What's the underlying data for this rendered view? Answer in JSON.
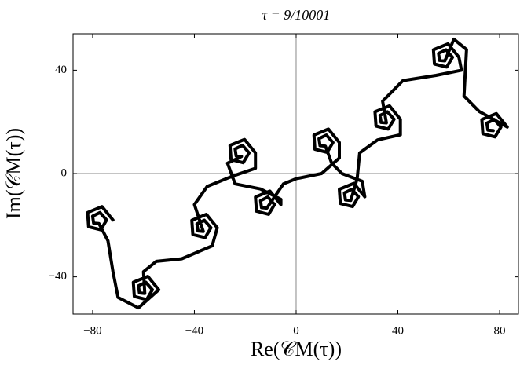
{
  "chart_data": {
    "type": "line",
    "title": "τ = 9/10001",
    "x_label": "Re(𝒞M(τ))",
    "y_label": "Im(𝒞M(τ))",
    "xlim": [
      -87.7,
      87.4
    ],
    "ylim": [
      -54.4,
      54.1
    ],
    "xticks": [
      {
        "value": -80,
        "label": "−80"
      },
      {
        "value": -40,
        "label": "−40"
      },
      0,
      40,
      80
    ],
    "yticks": [
      {
        "value": -40,
        "label": "−40"
      },
      0,
      40
    ],
    "zero_lines": true,
    "grid": false,
    "x": [
      -72,
      -76.3,
      -82,
      -81.6,
      -76.8,
      -74.5,
      -77.1,
      -80,
      -79.6,
      -77.5,
      -74,
      -72,
      -70,
      -62,
      -54,
      -58.3,
      -64,
      -63.6,
      -58.8,
      -56.5,
      -59.1,
      -62,
      -61.6,
      -59.5,
      -60,
      -55,
      -45,
      -33,
      -31,
      -35.3,
      -41,
      -40.6,
      -35.8,
      -33.5,
      -36.1,
      -39,
      -38.6,
      -36.5,
      -40,
      -35,
      -25,
      -16,
      -16,
      -20.3,
      -26,
      -25.6,
      -20.8,
      -18.5,
      -21.1,
      -24,
      -23.6,
      -21.5,
      -27,
      -24,
      -14,
      -6,
      -6,
      -10.3,
      -16,
      -15.6,
      -10.8,
      -8.5,
      -11.1,
      -14,
      -13.6,
      -11.5,
      -5,
      0,
      10,
      17,
      17,
      12.7,
      7,
      7.4,
      12.2,
      14.5,
      11.9,
      9,
      9.4,
      11.5,
      14,
      18,
      26,
      27,
      22.7,
      17,
      17.4,
      22.2,
      24.5,
      21.9,
      19,
      19.4,
      21.5,
      24,
      25,
      32,
      41,
      41,
      36.7,
      31,
      31.4,
      36.2,
      38.5,
      35.9,
      33,
      33.4,
      35.5,
      34,
      42,
      55,
      65,
      64,
      59.7,
      54,
      54.4,
      59.2,
      61.5,
      58.9,
      56,
      56.4,
      58.5,
      62,
      67,
      66,
      72,
      83,
      78.7,
      73,
      73.4,
      78.2,
      80.5,
      77.9,
      75,
      75.4,
      77.5
    ],
    "series": [
      {
        "color": "#000000",
        "values": [
          -18,
          -12.8,
          -15.1,
          -20.6,
          -21.8,
          -18,
          -15.1,
          -16.5,
          -19.2,
          -19.4,
          -26,
          -38,
          -48,
          -52,
          -45,
          -39.8,
          -42.1,
          -47.6,
          -48.8,
          -45,
          -42.1,
          -43.5,
          -46.2,
          -46.4,
          -38,
          -34,
          -33,
          -28,
          -21,
          -15.8,
          -18.1,
          -23.6,
          -24.8,
          -21,
          -18.1,
          -19.5,
          -22.2,
          -22.4,
          -12,
          -5,
          -1,
          2,
          8,
          13.2,
          10.9,
          5.4,
          4.2,
          8,
          10.9,
          9.5,
          6.8,
          6.6,
          4,
          -4,
          -6,
          -10,
          -12,
          -6.8,
          -9.1,
          -14.6,
          -15.8,
          -12,
          -9.1,
          -10.5,
          -13.2,
          -13.4,
          -4,
          -2,
          0,
          6,
          12,
          17.2,
          14.9,
          9.4,
          8.2,
          12,
          14.9,
          13.5,
          10.8,
          10.6,
          4,
          0,
          -3,
          -9,
          -3.8,
          -6.1,
          -11.6,
          -12.8,
          -9,
          -6.1,
          -7.5,
          -10.2,
          -10.4,
          -2,
          8,
          13,
          15,
          21,
          26.2,
          23.9,
          18.4,
          17.2,
          21,
          23.9,
          22.5,
          19.8,
          19.6,
          28,
          36,
          38,
          40,
          45,
          50.2,
          47.9,
          42.4,
          41.2,
          45,
          47.9,
          46.5,
          43.8,
          43.6,
          52,
          48,
          30,
          24,
          18,
          23.2,
          20.9,
          15.4,
          14.2,
          18,
          20.9,
          19.5,
          16.8,
          16.6
        ]
      }
    ]
  }
}
